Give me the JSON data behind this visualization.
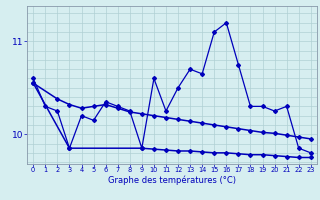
{
  "x_main": [
    0,
    1,
    2,
    3,
    4,
    5,
    6,
    7,
    8,
    9,
    10,
    11,
    12,
    13,
    14,
    15,
    16,
    17,
    18,
    19,
    20,
    21,
    22,
    23
  ],
  "y_main": [
    10.6,
    10.3,
    10.25,
    9.85,
    10.2,
    10.15,
    10.35,
    10.3,
    10.25,
    9.85,
    10.6,
    10.25,
    10.5,
    10.7,
    10.65,
    11.1,
    11.2,
    10.75,
    10.3,
    10.3,
    10.25,
    10.3,
    9.85,
    9.8
  ],
  "x_upper": [
    0,
    2,
    3,
    4,
    5,
    6,
    7,
    8,
    9,
    10,
    11,
    12,
    13,
    14,
    15,
    16,
    17,
    18,
    19,
    20,
    21,
    22,
    23
  ],
  "y_upper": [
    10.55,
    10.38,
    10.32,
    10.28,
    10.3,
    10.32,
    10.28,
    10.24,
    10.22,
    10.2,
    10.18,
    10.16,
    10.14,
    10.12,
    10.1,
    10.08,
    10.06,
    10.04,
    10.02,
    10.01,
    9.99,
    9.97,
    9.95
  ],
  "x_lower": [
    0,
    3,
    9,
    10,
    11,
    12,
    13,
    14,
    15,
    16,
    17,
    18,
    19,
    20,
    21,
    22,
    23
  ],
  "y_lower": [
    10.55,
    9.85,
    9.85,
    9.84,
    9.83,
    9.82,
    9.82,
    9.81,
    9.8,
    9.8,
    9.79,
    9.78,
    9.78,
    9.77,
    9.76,
    9.75,
    9.75
  ],
  "ylim": [
    9.68,
    11.38
  ],
  "xlabel": "Graphe des températures (°C)",
  "bg_color": "#d6eef0",
  "line_color": "#0000bb",
  "grid_color": "#b0d0d4",
  "fig_width": 3.2,
  "fig_height": 2.0,
  "dpi": 100
}
